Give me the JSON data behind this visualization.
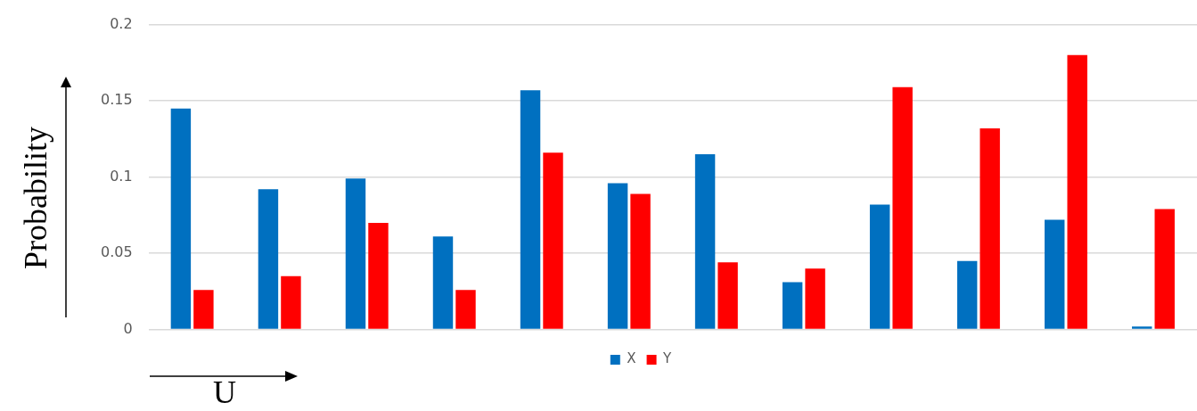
{
  "chart_data": {
    "type": "bar",
    "xlabel": "U",
    "ylabel": "Probability",
    "categories": [
      null,
      null,
      null,
      null,
      null,
      null,
      null,
      null,
      null,
      null,
      null,
      null
    ],
    "series": [
      {
        "name": "X",
        "color": "#0070c0",
        "values": [
          0.145,
          0.092,
          0.099,
          0.061,
          0.157,
          0.096,
          0.115,
          0.031,
          0.082,
          0.045,
          0.072,
          0.002
        ]
      },
      {
        "name": "Y",
        "color": "#ff0000",
        "values": [
          0.026,
          0.035,
          0.07,
          0.026,
          0.116,
          0.089,
          0.044,
          0.04,
          0.159,
          0.132,
          0.18,
          0.079
        ]
      }
    ],
    "ylim": [
      0,
      0.2
    ],
    "yticks": [
      0,
      0.05,
      0.1,
      0.15,
      0.2
    ],
    "grid": "y",
    "legend": "bottom"
  }
}
